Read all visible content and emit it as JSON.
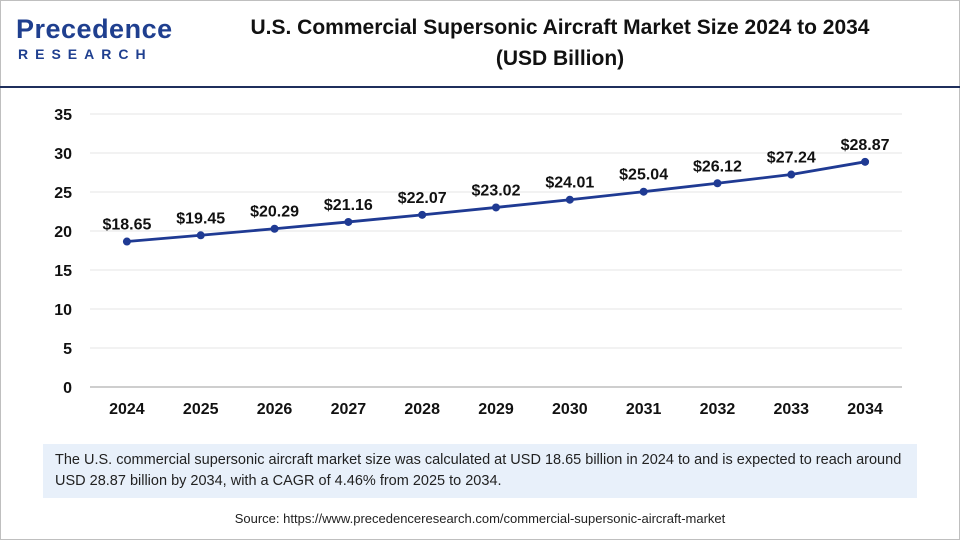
{
  "logo": {
    "line1": "Precedence",
    "line2": "RESEARCH"
  },
  "title": {
    "line1": "U.S. Commercial Supersonic Aircraft Market Size 2024 to 2034",
    "line2": "(USD Billion)"
  },
  "chart_data": {
    "type": "line",
    "title": "U.S. Commercial Supersonic Aircraft Market Size 2024 to 2034 (USD Billion)",
    "xlabel": "",
    "ylabel": "",
    "categories": [
      "2024",
      "2025",
      "2026",
      "2027",
      "2028",
      "2029",
      "2030",
      "2031",
      "2032",
      "2033",
      "2034"
    ],
    "series": [
      {
        "values": [
          18.65,
          19.45,
          20.29,
          21.16,
          22.07,
          23.02,
          24.01,
          25.04,
          26.12,
          27.24,
          28.87
        ],
        "data_labels": [
          "$18.65",
          "$19.45",
          "$20.29",
          "$21.16",
          "$22.07",
          "$23.02",
          "$24.01",
          "$25.04",
          "$26.12",
          "$27.24",
          "$28.87"
        ]
      }
    ],
    "ylim": [
      0,
      35
    ],
    "yticks": [
      "0",
      "5",
      "10",
      "15",
      "20",
      "25",
      "30",
      "35"
    ],
    "grid": true,
    "colors": {
      "line": "#1f3a93",
      "marker": "#1f3a93",
      "grid": "#e6e6e6"
    }
  },
  "footnote": "The U.S. commercial supersonic aircraft market size was calculated at USD 18.65 billion in 2024 to and is expected to reach around USD 28.87 billion by 2034, with a CAGR of 4.46% from 2025 to 2034.",
  "source": "Source: https://www.precedenceresearch.com/commercial-supersonic-aircraft-market"
}
